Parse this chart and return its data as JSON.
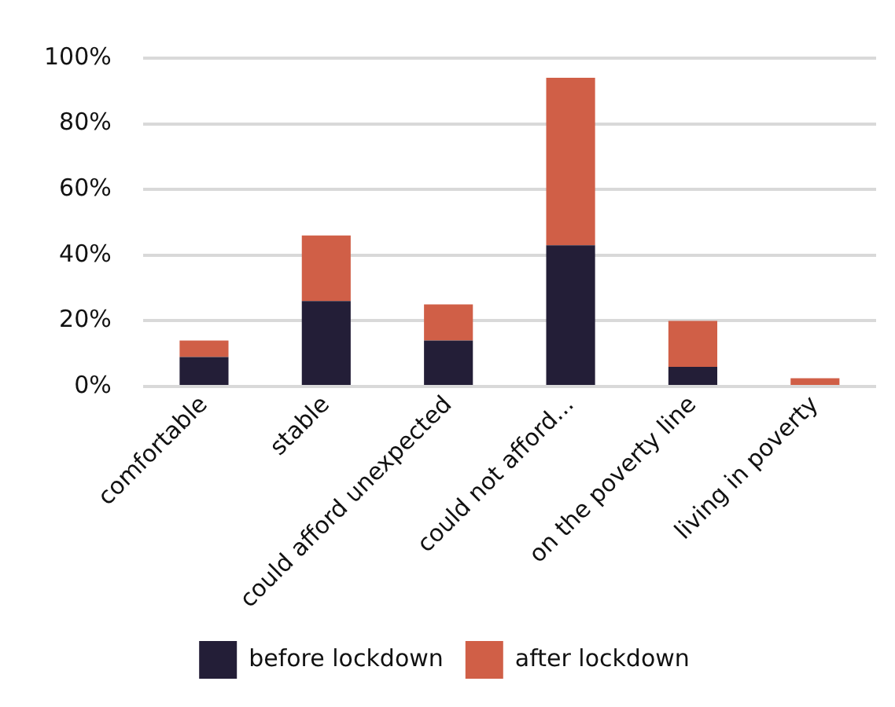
{
  "chart_data": {
    "type": "bar",
    "stacked": true,
    "categories": [
      "comfortable",
      "stable",
      "could afford unexpected",
      "could not afford...",
      "on the poverty line",
      "living in poverty"
    ],
    "series": [
      {
        "name": "before lockdown",
        "color": "#231e37",
        "values": [
          9,
          26,
          14,
          43,
          6,
          0
        ]
      },
      {
        "name": "after lockdown",
        "color": "#d05f47",
        "values": [
          5,
          20,
          11,
          51,
          14,
          2.5
        ]
      }
    ],
    "ylim": [
      0,
      100
    ],
    "yticks": [
      {
        "value": 0,
        "label": "0%"
      },
      {
        "value": 20,
        "label": "20%"
      },
      {
        "value": 40,
        "label": "40%"
      },
      {
        "value": 60,
        "label": "60%"
      },
      {
        "value": 80,
        "label": "80%"
      },
      {
        "value": 100,
        "label": "100%"
      }
    ],
    "grid": "y",
    "legend": "bottom"
  }
}
